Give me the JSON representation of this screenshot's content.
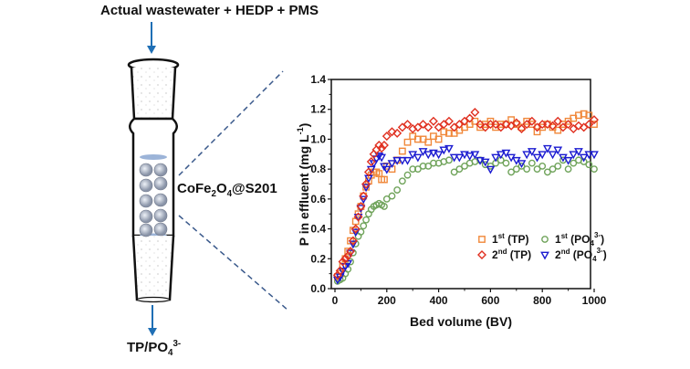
{
  "diagram": {
    "feed_label": "Actual wastewater + HEDP + PMS",
    "media_label_main": "CoFe",
    "media_label_sub1": "2",
    "media_label_mid": "O",
    "media_label_sub2": "4",
    "media_label_tail": "@S201",
    "output_label_main": "TP/PO",
    "output_label_sub": "4",
    "output_label_sup": "3-",
    "arrow_color": "#1f6fb5",
    "dash_color": "#3b5a8c"
  },
  "chart_data": {
    "type": "scatter",
    "xlabel": "Bed volume (BV)",
    "ylabel": "P in effluent (mg L",
    "ylabel_sup": "-1",
    "ylabel_close": ")",
    "xlim": [
      0,
      1000
    ],
    "ylim": [
      0,
      1.4
    ],
    "xticks": [
      "0",
      "200",
      "400",
      "600",
      "800",
      "1000"
    ],
    "yticks": [
      "0.0",
      "0.2",
      "0.4",
      "0.6",
      "0.8",
      "1.0",
      "1.2",
      "1.4"
    ],
    "xtick_values": [
      0,
      200,
      400,
      600,
      800,
      1000
    ],
    "ytick_values": [
      0,
      0.2,
      0.4,
      0.6,
      0.8,
      1.0,
      1.2,
      1.4
    ],
    "legend_position": "lower-right",
    "series": [
      {
        "name": "1st (TP)",
        "label_main": "1",
        "label_sup": "st",
        "label_tail": " (TP)",
        "marker": "square",
        "color": "#f0883a",
        "x": [
          10,
          20,
          30,
          40,
          50,
          60,
          70,
          80,
          90,
          100,
          110,
          120,
          130,
          140,
          150,
          160,
          170,
          180,
          190,
          200,
          220,
          240,
          260,
          280,
          300,
          320,
          340,
          360,
          380,
          400,
          420,
          440,
          460,
          480,
          500,
          520,
          540,
          560,
          580,
          600,
          620,
          640,
          660,
          680,
          700,
          720,
          740,
          760,
          780,
          800,
          820,
          840,
          860,
          880,
          900,
          920,
          940,
          960,
          980,
          1000
        ],
        "y": [
          0.08,
          0.1,
          0.15,
          0.2,
          0.25,
          0.32,
          0.39,
          0.45,
          0.5,
          0.55,
          0.62,
          0.68,
          0.72,
          0.76,
          0.78,
          0.78,
          0.77,
          0.73,
          0.73,
          0.82,
          0.8,
          0.86,
          0.92,
          0.98,
          1.02,
          1.0,
          1.0,
          0.98,
          1.02,
          1.0,
          1.05,
          1.04,
          1.04,
          1.06,
          1.08,
          1.1,
          1.12,
          1.08,
          1.1,
          1.12,
          1.08,
          1.1,
          1.1,
          1.13,
          1.1,
          1.08,
          1.12,
          1.1,
          1.05,
          1.08,
          1.1,
          1.08,
          1.06,
          1.1,
          1.12,
          1.14,
          1.16,
          1.17,
          1.16,
          1.1
        ]
      },
      {
        "name": "2nd (TP)",
        "label_main": "2",
        "label_sup": "nd",
        "label_tail": " (TP)",
        "marker": "diamond",
        "color": "#e03020",
        "x": [
          10,
          20,
          30,
          40,
          50,
          60,
          70,
          80,
          90,
          100,
          110,
          120,
          130,
          140,
          150,
          160,
          170,
          180,
          190,
          200,
          220,
          240,
          260,
          280,
          300,
          320,
          340,
          360,
          380,
          400,
          420,
          440,
          460,
          480,
          500,
          520,
          540,
          560,
          580,
          600,
          620,
          640,
          660,
          680,
          700,
          720,
          740,
          760,
          780,
          800,
          820,
          840,
          860,
          880,
          900,
          920,
          940,
          960,
          980,
          1000
        ],
        "y": [
          0.09,
          0.12,
          0.18,
          0.2,
          0.22,
          0.25,
          0.32,
          0.4,
          0.48,
          0.55,
          0.62,
          0.7,
          0.78,
          0.85,
          0.9,
          0.93,
          0.96,
          0.94,
          0.96,
          1.02,
          1.05,
          1.04,
          1.08,
          1.1,
          1.07,
          1.08,
          1.1,
          1.08,
          1.12,
          1.08,
          1.1,
          1.12,
          1.08,
          1.1,
          1.12,
          1.14,
          1.18,
          1.1,
          1.08,
          1.1,
          1.1,
          1.08,
          1.1,
          1.09,
          1.11,
          1.07,
          1.1,
          1.12,
          1.08,
          1.1,
          1.1,
          1.09,
          1.12,
          1.08,
          1.1,
          1.07,
          1.09,
          1.08,
          1.1,
          1.13
        ]
      },
      {
        "name": "1st (PO43-)",
        "label_main": "1",
        "label_sup": "st",
        "label_tail": " (PO",
        "label_sub": "4",
        "label_sup2": "3-",
        "label_close": ")",
        "marker": "circle",
        "color": "#6fa35a",
        "x": [
          10,
          20,
          30,
          40,
          50,
          60,
          70,
          80,
          90,
          100,
          110,
          120,
          130,
          140,
          150,
          160,
          170,
          180,
          190,
          200,
          220,
          240,
          260,
          280,
          300,
          320,
          340,
          360,
          380,
          400,
          420,
          440,
          460,
          480,
          500,
          520,
          540,
          560,
          580,
          600,
          620,
          640,
          660,
          680,
          700,
          720,
          740,
          760,
          780,
          800,
          820,
          840,
          860,
          880,
          900,
          920,
          940,
          960,
          980,
          1000
        ],
        "y": [
          0.05,
          0.06,
          0.07,
          0.1,
          0.13,
          0.18,
          0.24,
          0.3,
          0.35,
          0.38,
          0.42,
          0.46,
          0.5,
          0.53,
          0.55,
          0.56,
          0.57,
          0.56,
          0.55,
          0.6,
          0.62,
          0.66,
          0.72,
          0.76,
          0.8,
          0.8,
          0.82,
          0.82,
          0.84,
          0.84,
          0.85,
          0.86,
          0.78,
          0.8,
          0.82,
          0.84,
          0.85,
          0.86,
          0.83,
          0.82,
          0.84,
          0.86,
          0.84,
          0.78,
          0.8,
          0.82,
          0.8,
          0.84,
          0.8,
          0.82,
          0.78,
          0.8,
          0.82,
          0.86,
          0.8,
          0.84,
          0.86,
          0.85,
          0.83,
          0.8
        ]
      },
      {
        "name": "2nd (PO43-)",
        "label_main": "2",
        "label_sup": "nd",
        "label_tail": " (PO",
        "label_sub": "4",
        "label_sup2": "3-",
        "label_close": ")",
        "marker": "triangle-down",
        "color": "#1a1ad0",
        "x": [
          10,
          20,
          30,
          40,
          50,
          60,
          70,
          80,
          90,
          100,
          110,
          120,
          130,
          140,
          150,
          160,
          170,
          180,
          190,
          200,
          220,
          240,
          260,
          280,
          300,
          320,
          340,
          360,
          380,
          400,
          420,
          440,
          460,
          480,
          500,
          520,
          540,
          560,
          580,
          600,
          620,
          640,
          660,
          680,
          700,
          720,
          740,
          760,
          780,
          800,
          820,
          840,
          860,
          880,
          900,
          920,
          940,
          960,
          980,
          1000
        ],
        "y": [
          0.06,
          0.08,
          0.12,
          0.15,
          0.17,
          0.24,
          0.3,
          0.38,
          0.48,
          0.54,
          0.6,
          0.68,
          0.74,
          0.8,
          0.84,
          0.87,
          0.89,
          0.88,
          0.82,
          0.8,
          0.84,
          0.86,
          0.86,
          0.86,
          0.9,
          0.88,
          0.92,
          0.9,
          0.91,
          0.9,
          0.93,
          0.94,
          0.88,
          0.88,
          0.9,
          0.89,
          0.9,
          0.86,
          0.85,
          0.8,
          0.88,
          0.9,
          0.91,
          0.88,
          0.86,
          0.84,
          0.9,
          0.92,
          0.88,
          0.9,
          0.94,
          0.9,
          0.93,
          0.88,
          0.86,
          0.9,
          0.92,
          0.88,
          0.9,
          0.9
        ]
      }
    ]
  }
}
